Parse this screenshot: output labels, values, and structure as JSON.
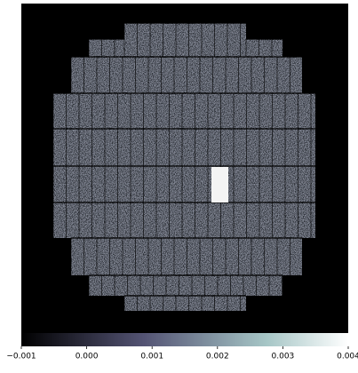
{
  "chart_data": {
    "type": "image",
    "colormap": "bone",
    "clim": [
      -0.001,
      0.004
    ],
    "cticks": [
      {
        "value": -0.001,
        "label": "−0.001"
      },
      {
        "value": 0,
        "label": "0.000"
      },
      0.001,
      0.002,
      0.003,
      0.004
    ]
  }
}
